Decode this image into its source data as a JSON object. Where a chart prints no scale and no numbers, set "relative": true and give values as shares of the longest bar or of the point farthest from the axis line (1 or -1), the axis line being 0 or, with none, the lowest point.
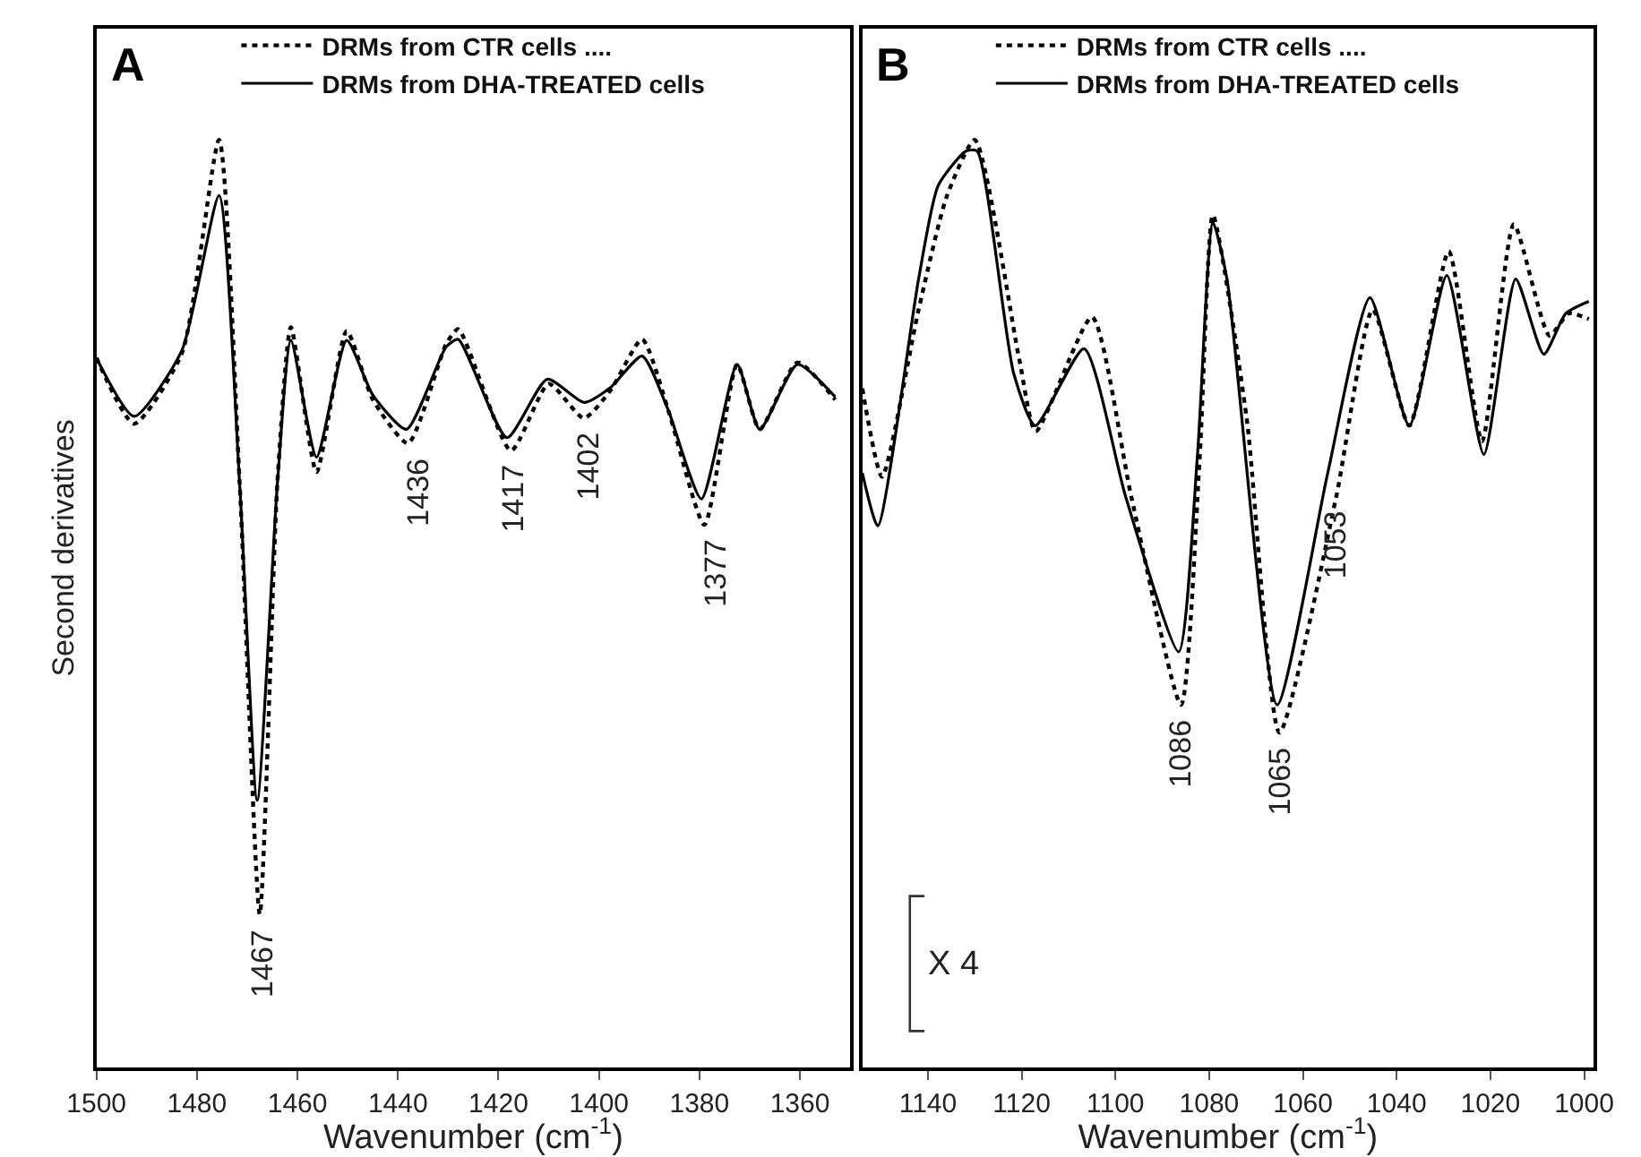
{
  "chart_data": [
    {
      "type": "line",
      "relative": true,
      "xlabel": "Wavenumber (cm$^{-1}$)",
      "ylabel": "Second derivatives",
      "xlim": [
        1500,
        1350
      ],
      "xticks": [
        1500,
        1480,
        1460,
        1440,
        1420,
        1400,
        1380,
        1360
      ],
      "tick_labels": "x",
      "legend": "top",
      "marker": "none",
      "series": [
        {
          "name": "DRMs from CTR cells ....",
          "color": "#000000",
          "line_style": "dotted",
          "x": [
            1500,
            1492.5,
            1483,
            1475.6,
            1471.5,
            1467.5,
            1464,
            1461.3,
            1456.2,
            1450.2,
            1445,
            1438,
            1430.4,
            1428,
            1417.5,
            1410,
            1403,
            1397.7,
            1391.4,
            1386,
            1379,
            1372.5,
            1368,
            1360.5,
            1353
          ],
          "values": [
            0.765,
            0.694,
            0.77,
            1.0,
            0.63,
            0.165,
            0.63,
            0.798,
            0.642,
            0.794,
            0.72,
            0.673,
            0.78,
            0.796,
            0.665,
            0.737,
            0.7,
            0.73,
            0.785,
            0.705,
            0.585,
            0.758,
            0.688,
            0.76,
            0.72
          ]
        },
        {
          "name": "DRMs from DHA-TREATED cells",
          "color": "#000000",
          "line_style": "solid",
          "x": [
            1500,
            1492.5,
            1483,
            1475.6,
            1471.5,
            1468,
            1464,
            1461.3,
            1456.2,
            1450.2,
            1445,
            1438.3,
            1430.4,
            1428,
            1418.3,
            1410.3,
            1402.9,
            1397.7,
            1391.4,
            1386.3,
            1379.6,
            1372.5,
            1368,
            1360.5,
            1353
          ],
          "values": [
            0.765,
            0.702,
            0.773,
            0.94,
            0.629,
            0.288,
            0.629,
            0.784,
            0.658,
            0.784,
            0.725,
            0.688,
            0.777,
            0.785,
            0.679,
            0.742,
            0.717,
            0.733,
            0.767,
            0.71,
            0.613,
            0.758,
            0.688,
            0.758,
            0.723
          ]
        }
      ],
      "annotations": [
        "A",
        {
          "text": "1467",
          "x": 1467,
          "y": 0.165
        },
        {
          "text": "1436",
          "x": 1436,
          "y": 0.673
        },
        {
          "text": "1417",
          "x": 1417,
          "y": 0.665
        },
        {
          "text": "1402",
          "x": 1402,
          "y": 0.7
        },
        {
          "text": "1377",
          "x": 1377,
          "y": 0.585
        }
      ]
    },
    {
      "type": "line",
      "relative": true,
      "xlabel": "Wavenumber (cm$^{-1}$)",
      "xlim": [
        1154,
        998
      ],
      "xticks": [
        1140,
        1120,
        1100,
        1080,
        1060,
        1040,
        1020,
        1000
      ],
      "tick_labels": "x",
      "legend": "top",
      "marker": "none",
      "series": [
        {
          "name": "DRMs from CTR cells ....",
          "color": "#000000",
          "line_style": "dotted",
          "x": [
            1154,
            1149.8,
            1142,
            1136,
            1130,
            1120.5,
            1117,
            1105,
            1096.6,
            1086,
            1082,
            1079.2,
            1072,
            1065,
            1052.9,
            1045.1,
            1037.3,
            1028.9,
            1021.8,
            1015,
            1007.4,
            1003.3,
            999
          ],
          "values": [
            0.732,
            0.637,
            0.817,
            0.939,
            1.0,
            0.763,
            0.686,
            0.809,
            0.615,
            0.391,
            0.66,
            0.919,
            0.7,
            0.361,
            0.615,
            0.817,
            0.692,
            0.88,
            0.675,
            0.909,
            0.789,
            0.813,
            0.807
          ]
        },
        {
          "name": "DRMs from DHA-TREATED cells",
          "color": "#000000",
          "line_style": "solid",
          "x": [
            1154,
            1150.7,
            1142,
            1137.8,
            1131.9,
            1129.5,
            1121.7,
            1117.1,
            1106.7,
            1097.8,
            1086.5,
            1082.5,
            1079.2,
            1076.2,
            1065.5,
            1054.7,
            1045.7,
            1037.3,
            1029.3,
            1021.4,
            1014.6,
            1008.6,
            1003.9,
            999
          ],
          "values": [
            0.641,
            0.584,
            0.85,
            0.951,
            0.988,
            0.988,
            0.748,
            0.692,
            0.775,
            0.615,
            0.448,
            0.66,
            0.911,
            0.85,
            0.391,
            0.641,
            0.83,
            0.692,
            0.854,
            0.661,
            0.85,
            0.769,
            0.813,
            0.826
          ]
        }
      ],
      "annotations": [
        "B",
        "X 4",
        {
          "text": "1086",
          "x": 1086,
          "y": 0.391
        },
        {
          "text": "1065",
          "x": 1065,
          "y": 0.361
        },
        {
          "text": "1053",
          "x": 1053,
          "y": 0.615
        }
      ]
    }
  ]
}
